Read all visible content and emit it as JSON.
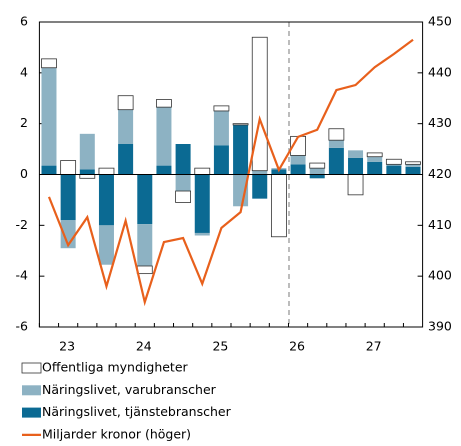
{
  "chart_data": {
    "type": "bar",
    "categories": [
      null,
      "23",
      null,
      null,
      null,
      "24",
      null,
      null,
      null,
      "25",
      null,
      null,
      null,
      "26",
      null,
      null,
      null,
      "27",
      null,
      null
    ],
    "series": [
      {
        "name": "Näringslivet, tjänstebranscher",
        "color": "#0b6a93",
        "values": [
          0.35,
          -1.8,
          0.2,
          -2,
          1.2,
          -1.95,
          0.35,
          1.2,
          -2.3,
          1.15,
          1.95,
          -0.95,
          0.2,
          0.4,
          -0.15,
          1.05,
          0.65,
          0.5,
          0.35,
          0.3
        ]
      },
      {
        "name": "Näringslivet, varubranscher",
        "color": "#8db2c3",
        "values": [
          3.85,
          -1.1,
          1.4,
          -1.55,
          1.35,
          -1.65,
          2.3,
          -0.65,
          -0.1,
          1.35,
          -1.25,
          0.15,
          0.05,
          0.35,
          0.25,
          0.3,
          0.3,
          0.2,
          0.05,
          0.1
        ]
      },
      {
        "name": "Offentliga myndigheter",
        "color": "#ffffff",
        "values": [
          0.35,
          0.55,
          -0.15,
          0.25,
          0.55,
          -0.3,
          0.3,
          -0.45,
          0.25,
          0.2,
          0.05,
          5.25,
          -2.45,
          0.75,
          0.2,
          0.45,
          -0.8,
          0.15,
          0.2,
          0.1
        ]
      },
      {
        "name": "Miljarder kronor (höger)",
        "color": "#e8601c",
        "type": "line",
        "axis": "y2",
        "values": [
          415.6,
          406.1,
          411.6,
          398,
          410.9,
          394.9,
          406.7,
          407.5,
          398.5,
          409.5,
          412.6,
          430.9,
          420.9,
          427.4,
          428.8,
          436.6,
          437.6,
          441.1,
          443.7,
          446.5
        ]
      }
    ],
    "legend_order": [
      2,
      1,
      0,
      3
    ],
    "ylim": [
      -6,
      6
    ],
    "yticks": [
      -6,
      -4,
      -2,
      0,
      2,
      4,
      6
    ],
    "y2lim": [
      390,
      450
    ],
    "y2ticks": [
      390,
      400,
      410,
      420,
      430,
      440,
      450
    ]
  }
}
